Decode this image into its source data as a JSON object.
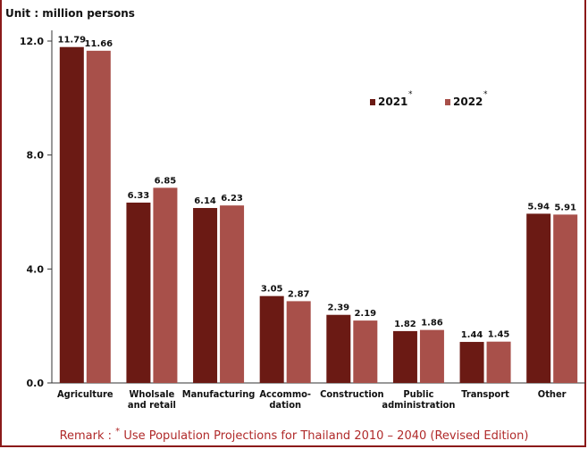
{
  "unit_label": "Unit : million persons",
  "remark": {
    "prefix": "Remark :",
    "marker": "*",
    "text": "Use Population Projections for Thailand 2010 – 2040 (Revised Edition)"
  },
  "colors": {
    "series_2021": "#6b1a14",
    "series_2022": "#a8504a",
    "remark": "#b02a2a",
    "frame": "#8b1a1a"
  },
  "chart_data": {
    "type": "bar",
    "title": "",
    "xlabel": "",
    "ylabel": "",
    "ylim": [
      0,
      12
    ],
    "yticks": [
      "0.0",
      "4.0",
      "8.0",
      "12.0"
    ],
    "legend_position": "top-right",
    "grid": false,
    "categories": [
      [
        "Agriculture"
      ],
      [
        "Wholsale",
        "and retail"
      ],
      [
        "Manufacturing"
      ],
      [
        "Accommo-",
        "dation"
      ],
      [
        "Construction"
      ],
      [
        "Public",
        "administration"
      ],
      [
        "Transport"
      ],
      [
        "Other"
      ]
    ],
    "series": [
      {
        "name": "2021",
        "marker": "*",
        "values": [
          11.79,
          6.33,
          6.14,
          3.05,
          2.39,
          1.82,
          1.44,
          5.94
        ],
        "labels": [
          "11.79",
          "6.33",
          "6.14",
          "3.05",
          "2.39",
          "1.82",
          "1.44",
          "5.94"
        ]
      },
      {
        "name": "2022",
        "marker": "*",
        "values": [
          11.66,
          6.85,
          6.23,
          2.87,
          2.19,
          1.86,
          1.45,
          5.91
        ],
        "labels": [
          "11.66",
          "6.85",
          "6.23",
          "2.87",
          "2.19",
          "1.86",
          "1.45",
          "5.91"
        ]
      }
    ]
  }
}
